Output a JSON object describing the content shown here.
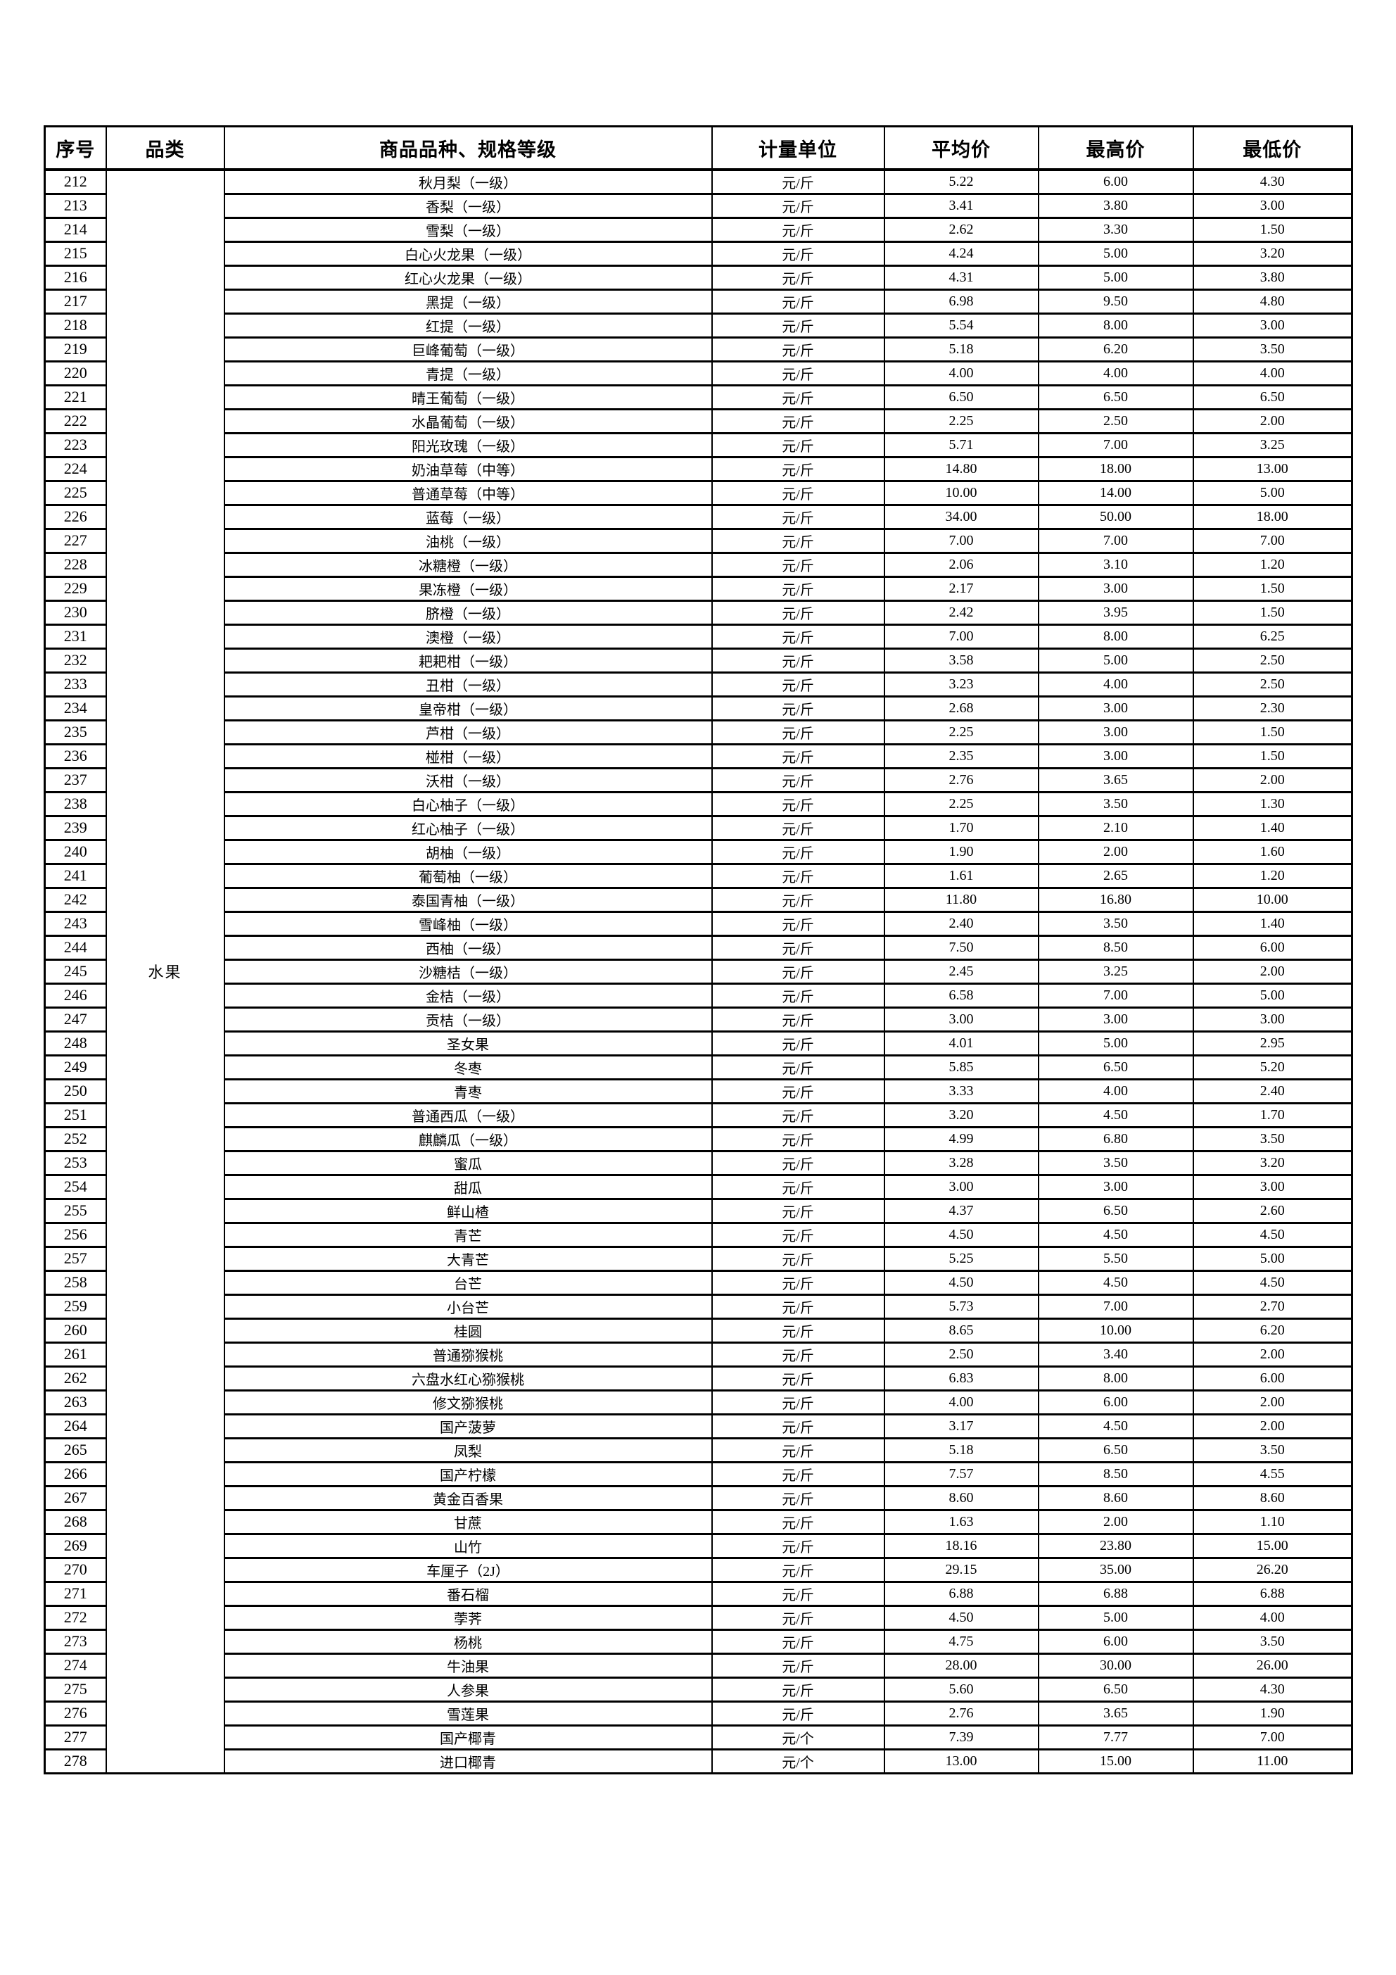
{
  "page": {
    "background": "#ffffff",
    "text_color": "#000000",
    "border_color": "#000000"
  },
  "table": {
    "columns": [
      "序号",
      "品类",
      "商品品种、规格等级",
      "计量单位",
      "平均价",
      "最高价",
      "最低价"
    ],
    "category_label": "水果",
    "rows": [
      [
        "212",
        "秋月梨（一级）",
        "元/斤",
        "5.22",
        "6.00",
        "4.30"
      ],
      [
        "213",
        "香梨（一级）",
        "元/斤",
        "3.41",
        "3.80",
        "3.00"
      ],
      [
        "214",
        "雪梨（一级）",
        "元/斤",
        "2.62",
        "3.30",
        "1.50"
      ],
      [
        "215",
        "白心火龙果（一级）",
        "元/斤",
        "4.24",
        "5.00",
        "3.20"
      ],
      [
        "216",
        "红心火龙果（一级）",
        "元/斤",
        "4.31",
        "5.00",
        "3.80"
      ],
      [
        "217",
        "黑提（一级）",
        "元/斤",
        "6.98",
        "9.50",
        "4.80"
      ],
      [
        "218",
        "红提（一级）",
        "元/斤",
        "5.54",
        "8.00",
        "3.00"
      ],
      [
        "219",
        "巨峰葡萄（一级）",
        "元/斤",
        "5.18",
        "6.20",
        "3.50"
      ],
      [
        "220",
        "青提（一级）",
        "元/斤",
        "4.00",
        "4.00",
        "4.00"
      ],
      [
        "221",
        "晴王葡萄（一级）",
        "元/斤",
        "6.50",
        "6.50",
        "6.50"
      ],
      [
        "222",
        "水晶葡萄（一级）",
        "元/斤",
        "2.25",
        "2.50",
        "2.00"
      ],
      [
        "223",
        "阳光玫瑰（一级）",
        "元/斤",
        "5.71",
        "7.00",
        "3.25"
      ],
      [
        "224",
        "奶油草莓（中等）",
        "元/斤",
        "14.80",
        "18.00",
        "13.00"
      ],
      [
        "225",
        "普通草莓（中等）",
        "元/斤",
        "10.00",
        "14.00",
        "5.00"
      ],
      [
        "226",
        "蓝莓（一级）",
        "元/斤",
        "34.00",
        "50.00",
        "18.00"
      ],
      [
        "227",
        "油桃（一级）",
        "元/斤",
        "7.00",
        "7.00",
        "7.00"
      ],
      [
        "228",
        "冰糖橙（一级）",
        "元/斤",
        "2.06",
        "3.10",
        "1.20"
      ],
      [
        "229",
        "果冻橙（一级）",
        "元/斤",
        "2.17",
        "3.00",
        "1.50"
      ],
      [
        "230",
        "脐橙（一级）",
        "元/斤",
        "2.42",
        "3.95",
        "1.50"
      ],
      [
        "231",
        "澳橙（一级）",
        "元/斤",
        "7.00",
        "8.00",
        "6.25"
      ],
      [
        "232",
        "耙耙柑（一级）",
        "元/斤",
        "3.58",
        "5.00",
        "2.50"
      ],
      [
        "233",
        "丑柑（一级）",
        "元/斤",
        "3.23",
        "4.00",
        "2.50"
      ],
      [
        "234",
        "皇帝柑（一级）",
        "元/斤",
        "2.68",
        "3.00",
        "2.30"
      ],
      [
        "235",
        "芦柑（一级）",
        "元/斤",
        "2.25",
        "3.00",
        "1.50"
      ],
      [
        "236",
        "椪柑（一级）",
        "元/斤",
        "2.35",
        "3.00",
        "1.50"
      ],
      [
        "237",
        "沃柑（一级）",
        "元/斤",
        "2.76",
        "3.65",
        "2.00"
      ],
      [
        "238",
        "白心柚子（一级）",
        "元/斤",
        "2.25",
        "3.50",
        "1.30"
      ],
      [
        "239",
        "红心柚子（一级）",
        "元/斤",
        "1.70",
        "2.10",
        "1.40"
      ],
      [
        "240",
        "胡柚（一级）",
        "元/斤",
        "1.90",
        "2.00",
        "1.60"
      ],
      [
        "241",
        "葡萄柚（一级）",
        "元/斤",
        "1.61",
        "2.65",
        "1.20"
      ],
      [
        "242",
        "泰国青柚（一级）",
        "元/斤",
        "11.80",
        "16.80",
        "10.00"
      ],
      [
        "243",
        "雪峰柚（一级）",
        "元/斤",
        "2.40",
        "3.50",
        "1.40"
      ],
      [
        "244",
        "西柚（一级）",
        "元/斤",
        "7.50",
        "8.50",
        "6.00"
      ],
      [
        "245",
        "沙糖桔（一级）",
        "元/斤",
        "2.45",
        "3.25",
        "2.00"
      ],
      [
        "246",
        "金桔（一级）",
        "元/斤",
        "6.58",
        "7.00",
        "5.00"
      ],
      [
        "247",
        "贡桔（一级）",
        "元/斤",
        "3.00",
        "3.00",
        "3.00"
      ],
      [
        "248",
        "圣女果",
        "元/斤",
        "4.01",
        "5.00",
        "2.95"
      ],
      [
        "249",
        "冬枣",
        "元/斤",
        "5.85",
        "6.50",
        "5.20"
      ],
      [
        "250",
        "青枣",
        "元/斤",
        "3.33",
        "4.00",
        "2.40"
      ],
      [
        "251",
        "普通西瓜（一级）",
        "元/斤",
        "3.20",
        "4.50",
        "1.70"
      ],
      [
        "252",
        "麒麟瓜（一级）",
        "元/斤",
        "4.99",
        "6.80",
        "3.50"
      ],
      [
        "253",
        "蜜瓜",
        "元/斤",
        "3.28",
        "3.50",
        "3.20"
      ],
      [
        "254",
        "甜瓜",
        "元/斤",
        "3.00",
        "3.00",
        "3.00"
      ],
      [
        "255",
        "鲜山楂",
        "元/斤",
        "4.37",
        "6.50",
        "2.60"
      ],
      [
        "256",
        "青芒",
        "元/斤",
        "4.50",
        "4.50",
        "4.50"
      ],
      [
        "257",
        "大青芒",
        "元/斤",
        "5.25",
        "5.50",
        "5.00"
      ],
      [
        "258",
        "台芒",
        "元/斤",
        "4.50",
        "4.50",
        "4.50"
      ],
      [
        "259",
        "小台芒",
        "元/斤",
        "5.73",
        "7.00",
        "2.70"
      ],
      [
        "260",
        "桂圆",
        "元/斤",
        "8.65",
        "10.00",
        "6.20"
      ],
      [
        "261",
        "普通猕猴桃",
        "元/斤",
        "2.50",
        "3.40",
        "2.00"
      ],
      [
        "262",
        "六盘水红心猕猴桃",
        "元/斤",
        "6.83",
        "8.00",
        "6.00"
      ],
      [
        "263",
        "修文猕猴桃",
        "元/斤",
        "4.00",
        "6.00",
        "2.00"
      ],
      [
        "264",
        "国产菠萝",
        "元/斤",
        "3.17",
        "4.50",
        "2.00"
      ],
      [
        "265",
        "凤梨",
        "元/斤",
        "5.18",
        "6.50",
        "3.50"
      ],
      [
        "266",
        "国产柠檬",
        "元/斤",
        "7.57",
        "8.50",
        "4.55"
      ],
      [
        "267",
        "黄金百香果",
        "元/斤",
        "8.60",
        "8.60",
        "8.60"
      ],
      [
        "268",
        "甘蔗",
        "元/斤",
        "1.63",
        "2.00",
        "1.10"
      ],
      [
        "269",
        "山竹",
        "元/斤",
        "18.16",
        "23.80",
        "15.00"
      ],
      [
        "270",
        "车厘子（2J）",
        "元/斤",
        "29.15",
        "35.00",
        "26.20"
      ],
      [
        "271",
        "番石榴",
        "元/斤",
        "6.88",
        "6.88",
        "6.88"
      ],
      [
        "272",
        "荸荠",
        "元/斤",
        "4.50",
        "5.00",
        "4.00"
      ],
      [
        "273",
        "杨桃",
        "元/斤",
        "4.75",
        "6.00",
        "3.50"
      ],
      [
        "274",
        "牛油果",
        "元/斤",
        "28.00",
        "30.00",
        "26.00"
      ],
      [
        "275",
        "人参果",
        "元/斤",
        "5.60",
        "6.50",
        "4.30"
      ],
      [
        "276",
        "雪莲果",
        "元/斤",
        "2.76",
        "3.65",
        "1.90"
      ],
      [
        "277",
        "国产椰青",
        "元/个",
        "7.39",
        "7.77",
        "7.00"
      ],
      [
        "278",
        "进口椰青",
        "元/个",
        "13.00",
        "15.00",
        "11.00"
      ]
    ]
  }
}
